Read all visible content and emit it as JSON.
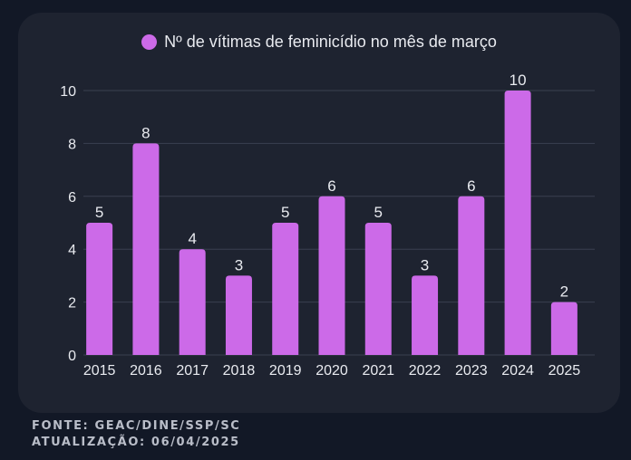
{
  "chart_data": {
    "type": "bar",
    "categories": [
      "2015",
      "2016",
      "2017",
      "2018",
      "2019",
      "2020",
      "2021",
      "2022",
      "2023",
      "2024",
      "2025"
    ],
    "series": [
      {
        "name": "Nº de vítimas de feminicídio no mês de março",
        "values": [
          5,
          8,
          4,
          3,
          5,
          6,
          5,
          3,
          6,
          10,
          2
        ]
      }
    ],
    "ylim": [
      0,
      10
    ],
    "yticks": [
      0,
      2,
      4,
      6,
      8,
      10
    ],
    "grid": true,
    "legend_position": "top",
    "data_labels": true
  },
  "colors": {
    "bar": "#cc6ae8",
    "background": "#121826",
    "card": "#1e2330",
    "grid": "#3a4050",
    "text": "#e9ebf0"
  },
  "footer": {
    "source": "FONTE: GEAC/DINE/SSP/SC",
    "updated": "ATUALIZAÇÃO: 06/04/2025"
  }
}
